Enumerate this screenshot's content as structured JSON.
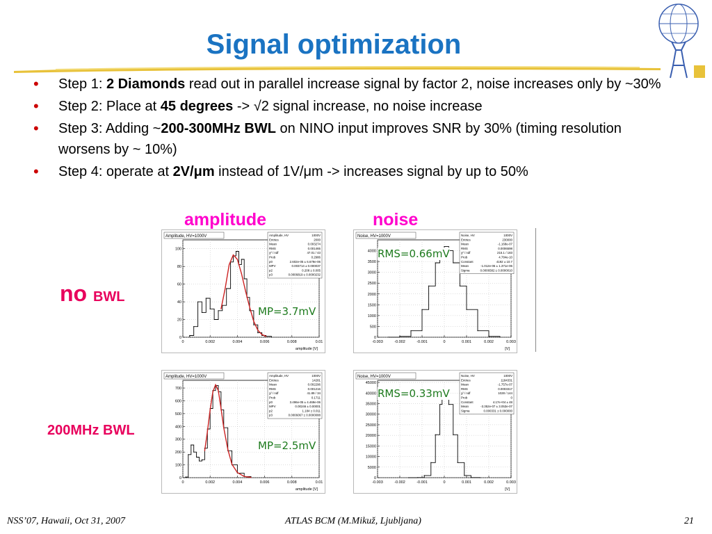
{
  "title": "Signal optimization",
  "bullets": [
    {
      "pre": "Step 1: ",
      "bold": "2 Diamonds",
      "post": " read out in parallel increase signal by factor 2, noise increases only by ~30%"
    },
    {
      "pre": "Step 2: Place at ",
      "bold": "45 degrees",
      "post": " -> √2 signal increase, no noise increase"
    },
    {
      "pre": "Step 3: Adding ~",
      "bold": "200-300MHz BWL",
      "post": " on NINO input improves SNR by 30% (timing resolution worsens by ~ 10%)"
    },
    {
      "pre": "Step 4: operate at ",
      "bold": "2V/μm",
      "post": " instead of 1V/μm -> increases signal by up to 50%"
    }
  ],
  "column_labels": {
    "amplitude": "amplitude",
    "noise": "noise"
  },
  "row_labels": {
    "top_big": "no",
    "top_small": "BWL",
    "bottom": "200MHz BWL"
  },
  "annotations": {
    "rms_top": "RMS=0.66mV",
    "mp_top": "MP=3.7mV",
    "rms_bottom": "RMS=0.33mV",
    "mp_bottom": "MP=2.5mV"
  },
  "footer": {
    "left": "NSS’07, Hawaii, Oct 31, 2007",
    "center": "ATLAS BCM (M.Mikuž, Ljubljana)",
    "right": "21"
  },
  "colors": {
    "title": "#1a73c2",
    "bullet": "#cc0000",
    "label": "#ff00cc",
    "row_label": "#e8005c",
    "annotation": "#1d7a1d",
    "fit": "#cc2222"
  },
  "chart_data": [
    {
      "type": "line",
      "title": "Amplitude, HV=1000V",
      "xlabel": "amplitude [V]",
      "xlim": [
        0,
        0.01
      ],
      "ylim": [
        0,
        110
      ],
      "x_ticks": [
        "0",
        "0.002",
        "0.004",
        "0.006",
        "0.008",
        "0.01"
      ],
      "y_ticks": [
        "0",
        "20",
        "40",
        "60",
        "80",
        "100"
      ],
      "stats": [
        [
          "Amplitude, HV",
          "1000V"
        ],
        [
          "Entries",
          "2000"
        ],
        [
          "Mean",
          "0.003274"
        ],
        [
          "RMS",
          "0.001465"
        ],
        [
          "χ² / ndf",
          "47.01 / 43"
        ],
        [
          "Prob",
          "0.2986"
        ],
        [
          "p0",
          "2.602e-05 ± 6.679e-06"
        ],
        [
          "MPV",
          "0.003714 ± 0.000037"
        ],
        [
          "p2",
          "0.208 ± 0.005"
        ],
        [
          "p3",
          "0.0006819 ± 0.0000232"
        ]
      ],
      "series": [
        {
          "name": "data",
          "x": [
            0.0005,
            0.0008,
            0.0011,
            0.0014,
            0.0017,
            0.002,
            0.0023,
            0.0026,
            0.0029,
            0.0032,
            0.0035,
            0.0037,
            0.0039,
            0.0041,
            0.0043,
            0.0045,
            0.0047,
            0.0049,
            0.0052,
            0.0055,
            0.0058,
            0.0061,
            0.0065
          ],
          "y": [
            2,
            12,
            40,
            28,
            44,
            32,
            20,
            30,
            36,
            55,
            85,
            92,
            97,
            82,
            88,
            66,
            45,
            30,
            14,
            5,
            2,
            1,
            0
          ]
        },
        {
          "name": "fit",
          "x": [
            0.0028,
            0.0031,
            0.0034,
            0.0037,
            0.004,
            0.0043,
            0.0046,
            0.0049,
            0.0052,
            0.0055,
            0.0058,
            0.0061
          ],
          "y": [
            32,
            55,
            82,
            93,
            88,
            72,
            52,
            34,
            18,
            8,
            3,
            1
          ]
        }
      ]
    },
    {
      "type": "line",
      "title": "Noise, HV=1000V",
      "xlabel": "[V]",
      "xlim": [
        -0.003,
        0.003
      ],
      "ylim": [
        0,
        4500
      ],
      "x_ticks": [
        "-0.003",
        "-0.002",
        "-0.001",
        "0",
        "0.001",
        "0.002",
        "0.003"
      ],
      "y_ticks": [
        "0",
        "500",
        "1000",
        "1500",
        "2000",
        "2500",
        "3000",
        "3500",
        "4000"
      ],
      "stats": [
        [
          "Noise, HV",
          "1000V"
        ],
        [
          "Entries",
          "230000"
        ],
        [
          "Mean",
          "-1.168e-07"
        ],
        [
          "RMS",
          "0.0006598"
        ],
        [
          "χ² / ndf",
          "215.1 / 183"
        ],
        [
          "Prob",
          "4.784e-10"
        ],
        [
          "Constant",
          "4192 ± 10.7"
        ],
        [
          "Mean",
          "-1.012e-06 ± 1.371e-06"
        ],
        [
          "Sigma",
          "0.0006582 ± 0.0000010"
        ]
      ],
      "series": [
        {
          "name": "data",
          "x": [
            -0.0025,
            -0.002,
            -0.0015,
            -0.001,
            -0.0007,
            -0.0004,
            -0.0002,
            0,
            0.0002,
            0.0004,
            0.0007,
            0.001,
            0.0015,
            0.002,
            0.0025
          ],
          "y": [
            3,
            40,
            300,
            1280,
            2370,
            3440,
            4000,
            4190,
            4000,
            3440,
            2370,
            1280,
            300,
            40,
            3
          ]
        }
      ]
    },
    {
      "type": "line",
      "title": "Amplitude, HV=1000V",
      "xlabel": "amplitude [V]",
      "xlim": [
        0,
        0.01
      ],
      "ylim": [
        0,
        760
      ],
      "x_ticks": [
        "0",
        "0.002",
        "0.004",
        "0.006",
        "0.008",
        "0.01"
      ],
      "y_ticks": [
        "0",
        "100",
        "200",
        "300",
        "400",
        "500",
        "600",
        "700"
      ],
      "stats": [
        [
          "Amplitude, HV",
          "1000V"
        ],
        [
          "Entries",
          "14281"
        ],
        [
          "Mean",
          "0.002296"
        ],
        [
          "RMS",
          "0.001216"
        ],
        [
          "χ² / ndf",
          "41.89 / 34"
        ],
        [
          "Prob",
          "0.1711"
        ],
        [
          "p0",
          "3.496e-05 ± 4.469e-06"
        ],
        [
          "MPV",
          "0.00246 ± 0.00001"
        ],
        [
          "p2",
          "1.184 ± 0.011"
        ],
        [
          "p3",
          "0.0006067 ± 0.0000088"
        ]
      ],
      "series": [
        {
          "name": "data",
          "x": [
            0.0002,
            0.0004,
            0.0006,
            0.0008,
            0.001,
            0.0012,
            0.0014,
            0.0016,
            0.0018,
            0.002,
            0.0022,
            0.0024,
            0.0026,
            0.0028,
            0.003,
            0.0033,
            0.0036,
            0.004,
            0.0045,
            0.005
          ],
          "y": [
            5,
            180,
            255,
            200,
            160,
            130,
            140,
            230,
            380,
            540,
            680,
            720,
            670,
            530,
            390,
            210,
            100,
            35,
            8,
            2
          ]
        },
        {
          "name": "fit",
          "x": [
            0.0016,
            0.0018,
            0.002,
            0.0022,
            0.0024,
            0.0026,
            0.0028,
            0.003,
            0.0033,
            0.0036,
            0.004,
            0.0045,
            0.005
          ],
          "y": [
            210,
            360,
            530,
            670,
            725,
            680,
            540,
            390,
            220,
            105,
            40,
            10,
            2
          ]
        }
      ]
    },
    {
      "type": "line",
      "title": "Noise, HV=1000V",
      "xlabel": "[V]",
      "xlim": [
        -0.003,
        0.003
      ],
      "ylim": [
        0,
        46000
      ],
      "x_ticks": [
        "-0.003",
        "-0.002",
        "-0.001",
        "0",
        "0.001",
        "0.002",
        "0.003"
      ],
      "y_ticks": [
        "0",
        "5000",
        "10000",
        "15000",
        "20000",
        "25000",
        "30000",
        "35000",
        "40000",
        "45000"
      ],
      "stats": [
        [
          "Noise, HV",
          "1000V"
        ],
        [
          "Entries",
          "1184331"
        ],
        [
          "Mean",
          "-1.757e-07"
        ],
        [
          "RMS",
          "0.0003317"
        ],
        [
          "χ² / ndf",
          "1028 / 144"
        ],
        [
          "Prob",
          "0"
        ],
        [
          "Constant",
          "4.17e+04 ± 48"
        ],
        [
          "Mean",
          "-3.352e-07 ± 3.053e-07"
        ],
        [
          "Sigma",
          "0.000331 ± 0.000000"
        ]
      ],
      "series": [
        {
          "name": "data",
          "x": [
            -0.0016,
            -0.0012,
            -0.0009,
            -0.0006,
            -0.0004,
            -0.0002,
            -0.0001,
            0,
            0.0001,
            0.0002,
            0.0004,
            0.0006,
            0.0009,
            0.0012,
            0.0016
          ],
          "y": [
            0,
            60,
            1030,
            7140,
            20300,
            34600,
            39870,
            41700,
            39870,
            34600,
            20300,
            7140,
            1030,
            60,
            0
          ]
        }
      ]
    }
  ]
}
